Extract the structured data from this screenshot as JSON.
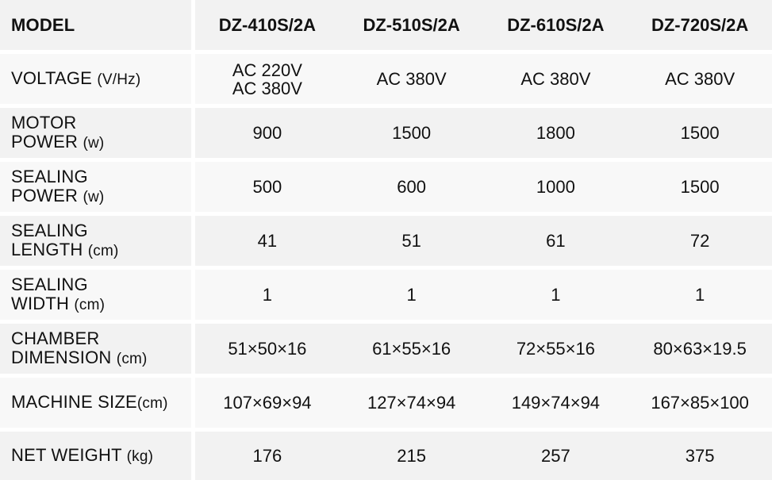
{
  "table": {
    "header": {
      "label": "MODEL",
      "models": [
        "DZ-410S/2A",
        "DZ-510S/2A",
        "DZ-610S/2A",
        "DZ-720S/2A"
      ]
    },
    "rows": [
      {
        "label": "VOLTAGE",
        "unit": "(V/Hz)",
        "values": [
          "AC 220V\nAC 380V",
          "AC 380V",
          "AC 380V",
          "AC 380V"
        ]
      },
      {
        "label": "MOTOR\nPOWER",
        "unit": "(w)",
        "values": [
          "900",
          "1500",
          "1800",
          "1500"
        ]
      },
      {
        "label": "SEALING\nPOWER",
        "unit": "(w)",
        "values": [
          "500",
          "600",
          "1000",
          "1500"
        ]
      },
      {
        "label": "SEALING\nLENGTH",
        "unit": "(cm)",
        "values": [
          "41",
          "51",
          "61",
          "72"
        ]
      },
      {
        "label": "SEALING\nWIDTH",
        "unit": "(cm)",
        "values": [
          "1",
          "1",
          "1",
          "1"
        ]
      },
      {
        "label": "CHAMBER\nDIMENSION",
        "unit": "(cm)",
        "values": [
          "51×50×16",
          "61×55×16",
          "72×55×16",
          "80×63×19.5"
        ]
      },
      {
        "label": "MACHINE SIZE",
        "unit": "(cm)",
        "values": [
          "107×69×94",
          "127×74×94",
          "149×74×94",
          "167×85×100"
        ]
      },
      {
        "label": "NET WEIGHT",
        "unit": "(kg)",
        "values": [
          "176",
          "215",
          "257",
          "375"
        ]
      }
    ]
  },
  "colors": {
    "row_dark": "#f2f2f2",
    "row_light": "#f8f8f8",
    "text": "#111111"
  }
}
